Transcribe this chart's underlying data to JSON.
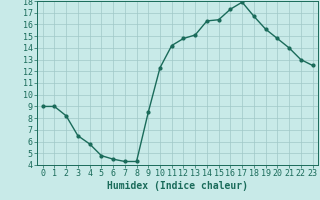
{
  "x": [
    0,
    1,
    2,
    3,
    4,
    5,
    6,
    7,
    8,
    9,
    10,
    11,
    12,
    13,
    14,
    15,
    16,
    17,
    18,
    19,
    20,
    21,
    22,
    23
  ],
  "y": [
    9.0,
    9.0,
    8.2,
    6.5,
    5.8,
    4.8,
    4.5,
    4.3,
    4.3,
    8.5,
    12.3,
    14.2,
    14.8,
    15.1,
    16.3,
    16.4,
    17.3,
    17.9,
    16.7,
    15.6,
    14.8,
    14.0,
    13.0,
    12.5
  ],
  "line_color": "#1a6b5a",
  "bg_color": "#c8eae8",
  "grid_color": "#a0c8c8",
  "tick_label_color": "#1a6b5a",
  "xlabel": "Humidex (Indice chaleur)",
  "ylim": [
    4,
    18
  ],
  "xlim": [
    -0.5,
    23.5
  ],
  "yticks": [
    4,
    5,
    6,
    7,
    8,
    9,
    10,
    11,
    12,
    13,
    14,
    15,
    16,
    17,
    18
  ],
  "xticks": [
    0,
    1,
    2,
    3,
    4,
    5,
    6,
    7,
    8,
    9,
    10,
    11,
    12,
    13,
    14,
    15,
    16,
    17,
    18,
    19,
    20,
    21,
    22,
    23
  ],
  "marker": "o",
  "marker_size": 2,
  "line_width": 1.0,
  "font_size": 6,
  "xlabel_fontsize": 7
}
